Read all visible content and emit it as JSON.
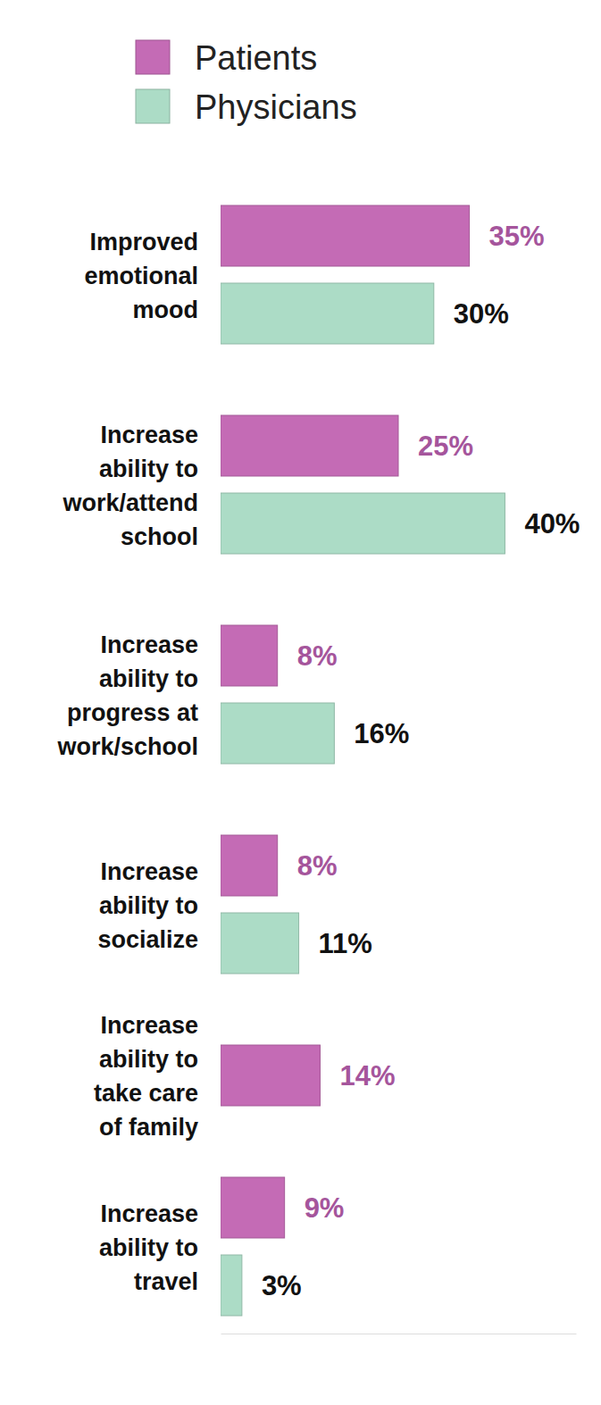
{
  "chart_data": {
    "type": "bar",
    "orientation": "horizontal",
    "categories": [
      "Improved\nemotional\nmood",
      "Increase\nability to\nwork/attend\nschool",
      "Increase\nability to\nprogress at\nwork/school",
      "Increase\nability to\nsocialize",
      "Increase\nability to\ntake care\nof family",
      "Increase\nability to\ntravel"
    ],
    "series": [
      {
        "name": "Patients",
        "color": "#c46bb5",
        "values": [
          35,
          25,
          8,
          8,
          14,
          9
        ],
        "value_labels": [
          "35%",
          "25%",
          "8%",
          "8%",
          "14%",
          "9%"
        ]
      },
      {
        "name": "Physicians",
        "color": "#acdcc6",
        "values": [
          30,
          40,
          16,
          11,
          null,
          3
        ],
        "value_labels": [
          "30%",
          "40%",
          "16%",
          "11%",
          null,
          "3%"
        ]
      }
    ],
    "xlim": [
      0,
      50
    ],
    "data_labels": true,
    "tick_labels": "y",
    "legend": "top-left"
  }
}
